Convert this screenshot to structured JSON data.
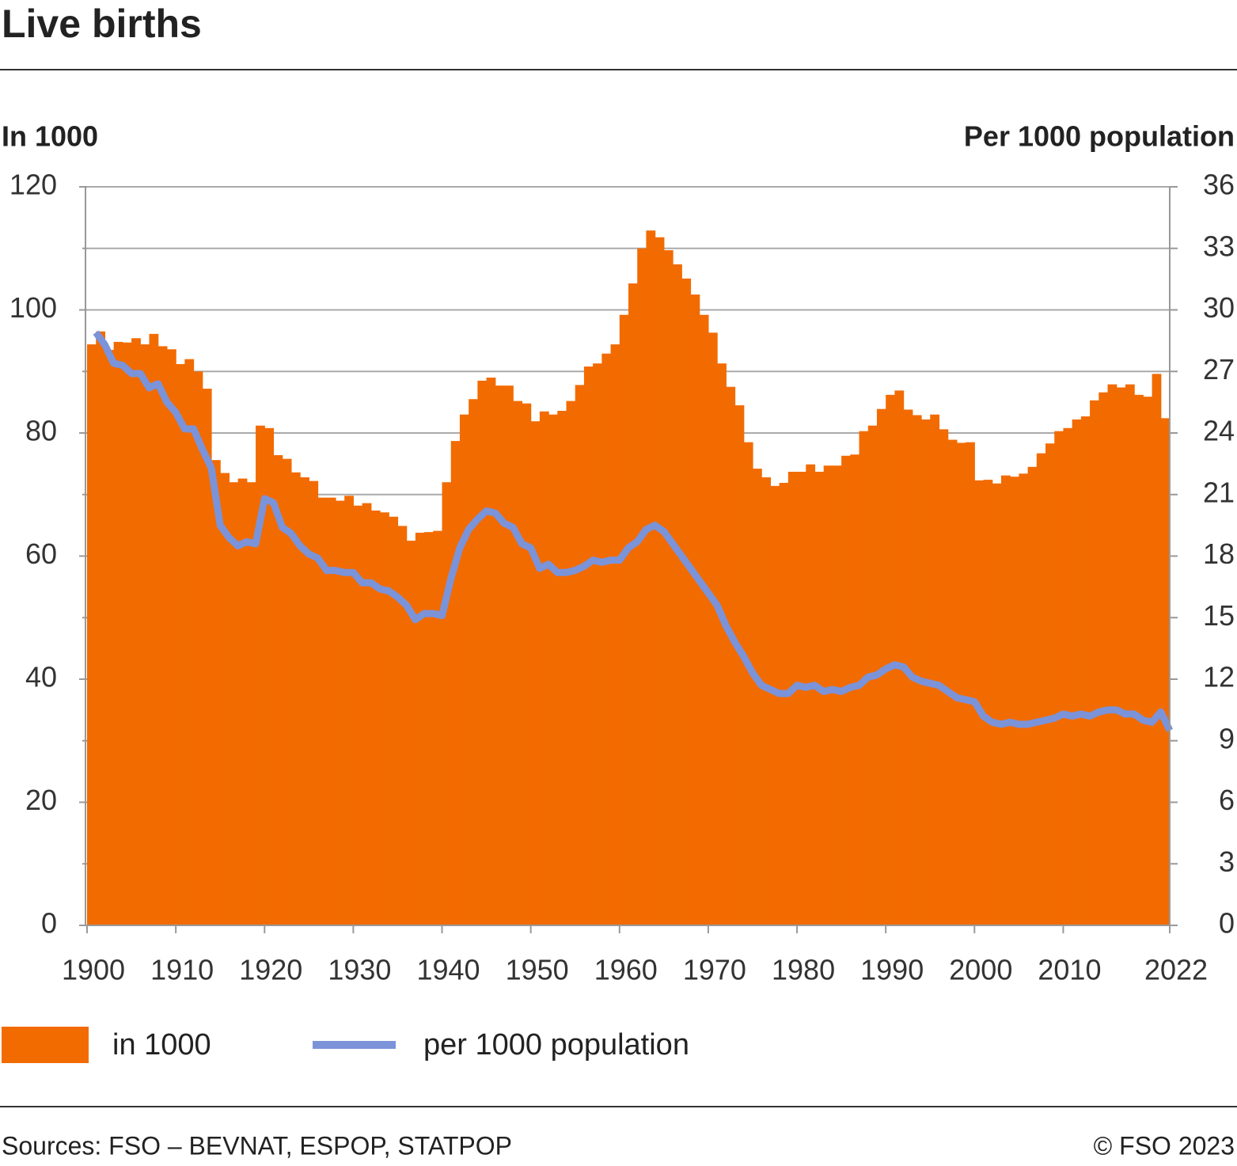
{
  "chart_data": {
    "type": "bar-line",
    "title": "Live births",
    "y_label": "In 1000",
    "y2_label": "Per 1000 population",
    "source": "Sources: FSO – BEVNAT, ESPOP, STATPOP",
    "copyright": "© FSO 2023",
    "x": [
      1901,
      1902,
      1903,
      1904,
      1905,
      1906,
      1907,
      1908,
      1909,
      1910,
      1911,
      1912,
      1913,
      1914,
      1915,
      1916,
      1917,
      1918,
      1919,
      1920,
      1921,
      1922,
      1923,
      1924,
      1925,
      1926,
      1927,
      1928,
      1929,
      1930,
      1931,
      1932,
      1933,
      1934,
      1935,
      1936,
      1937,
      1938,
      1939,
      1940,
      1941,
      1942,
      1943,
      1944,
      1945,
      1946,
      1947,
      1948,
      1949,
      1950,
      1951,
      1952,
      1953,
      1954,
      1955,
      1956,
      1957,
      1958,
      1959,
      1960,
      1961,
      1962,
      1963,
      1964,
      1965,
      1966,
      1967,
      1968,
      1969,
      1970,
      1971,
      1972,
      1973,
      1974,
      1975,
      1976,
      1977,
      1978,
      1979,
      1980,
      1981,
      1982,
      1983,
      1984,
      1985,
      1986,
      1987,
      1988,
      1989,
      1990,
      1991,
      1992,
      1993,
      1994,
      1995,
      1996,
      1997,
      1998,
      1999,
      2000,
      2001,
      2002,
      2003,
      2004,
      2005,
      2006,
      2007,
      2008,
      2009,
      2010,
      2011,
      2012,
      2013,
      2014,
      2015,
      2016,
      2017,
      2018,
      2019,
      2020,
      2021,
      2022
    ],
    "series": [
      {
        "name": "in 1000",
        "kind": "bar",
        "color": "#f26b00",
        "values": [
          94.4,
          96.5,
          93.5,
          94.8,
          94.7,
          95.4,
          94.4,
          96.1,
          94.1,
          93.6,
          91.2,
          92.0,
          90.0,
          87.2,
          75.6,
          73.5,
          72.0,
          72.6,
          72.0,
          81.2,
          80.8,
          76.4,
          75.8,
          73.6,
          72.8,
          72.2,
          69.5,
          69.5,
          69.0,
          69.8,
          68.2,
          68.6,
          67.4,
          67.1,
          66.4,
          64.9,
          62.5,
          63.8,
          63.9,
          64.1,
          72.0,
          78.7,
          83.0,
          85.5,
          88.5,
          89.0,
          87.7,
          87.7,
          85.2,
          84.8,
          81.9,
          83.5,
          83.0,
          83.6,
          85.2,
          87.8,
          90.8,
          91.3,
          92.9,
          94.4,
          99.2,
          104.3,
          110.0,
          112.9,
          111.8,
          109.7,
          107.4,
          105.1,
          102.5,
          99.2,
          96.3,
          91.3,
          87.5,
          84.5,
          78.5,
          74.2,
          72.8,
          71.4,
          71.9,
          73.7,
          73.7,
          74.9,
          73.7,
          74.7,
          74.7,
          76.3,
          76.5,
          80.3,
          81.2,
          83.9,
          86.2,
          86.9,
          83.8,
          82.9,
          82.2,
          83.0,
          80.6,
          78.9,
          78.4,
          78.5,
          72.3,
          72.4,
          71.8,
          73.1,
          72.9,
          73.4,
          74.5,
          76.7,
          78.3,
          80.3,
          80.8,
          82.2,
          82.7,
          85.3,
          86.6,
          87.9,
          87.4,
          87.9,
          86.2,
          85.9,
          89.6,
          82.4
        ]
      },
      {
        "name": "per 1000 population",
        "kind": "line",
        "axis": "y2",
        "color": "#7b93d9",
        "values": [
          28.9,
          28.3,
          27.4,
          27.3,
          26.9,
          26.9,
          26.2,
          26.4,
          25.5,
          25.0,
          24.2,
          24.2,
          23.2,
          22.3,
          19.5,
          18.9,
          18.5,
          18.7,
          18.6,
          20.8,
          20.6,
          19.4,
          19.1,
          18.5,
          18.1,
          17.9,
          17.3,
          17.3,
          17.2,
          17.2,
          16.7,
          16.7,
          16.4,
          16.3,
          16.0,
          15.6,
          14.9,
          15.2,
          15.2,
          15.1,
          16.9,
          18.4,
          19.3,
          19.8,
          20.2,
          20.1,
          19.6,
          19.4,
          18.6,
          18.4,
          17.4,
          17.6,
          17.2,
          17.2,
          17.3,
          17.5,
          17.8,
          17.7,
          17.8,
          17.8,
          18.4,
          18.7,
          19.3,
          19.5,
          19.2,
          18.6,
          18.0,
          17.4,
          16.8,
          16.2,
          15.6,
          14.6,
          13.8,
          13.1,
          12.3,
          11.7,
          11.5,
          11.3,
          11.3,
          11.7,
          11.6,
          11.7,
          11.4,
          11.5,
          11.4,
          11.6,
          11.7,
          12.1,
          12.2,
          12.5,
          12.7,
          12.6,
          12.1,
          11.9,
          11.8,
          11.7,
          11.4,
          11.1,
          11.0,
          10.9,
          10.2,
          9.9,
          9.8,
          9.9,
          9.8,
          9.8,
          9.9,
          10.0,
          10.1,
          10.3,
          10.2,
          10.3,
          10.2,
          10.4,
          10.5,
          10.5,
          10.3,
          10.3,
          10.0,
          9.9,
          10.4,
          9.5
        ]
      }
    ],
    "xlim": [
      1900,
      2022
    ],
    "xticks": [
      1900,
      1910,
      1920,
      1930,
      1940,
      1950,
      1960,
      1970,
      1980,
      1990,
      2000,
      2010,
      2022
    ],
    "ylim": [
      0,
      120
    ],
    "yticks": [
      0,
      20,
      40,
      60,
      80,
      100,
      120
    ],
    "yminor_ticks": [
      10,
      30,
      50,
      70,
      90,
      110
    ],
    "y2lim": [
      0,
      36
    ],
    "y2ticks": [
      0,
      3,
      6,
      9,
      12,
      15,
      18,
      21,
      24,
      27,
      30,
      33,
      36
    ],
    "grid": true
  }
}
